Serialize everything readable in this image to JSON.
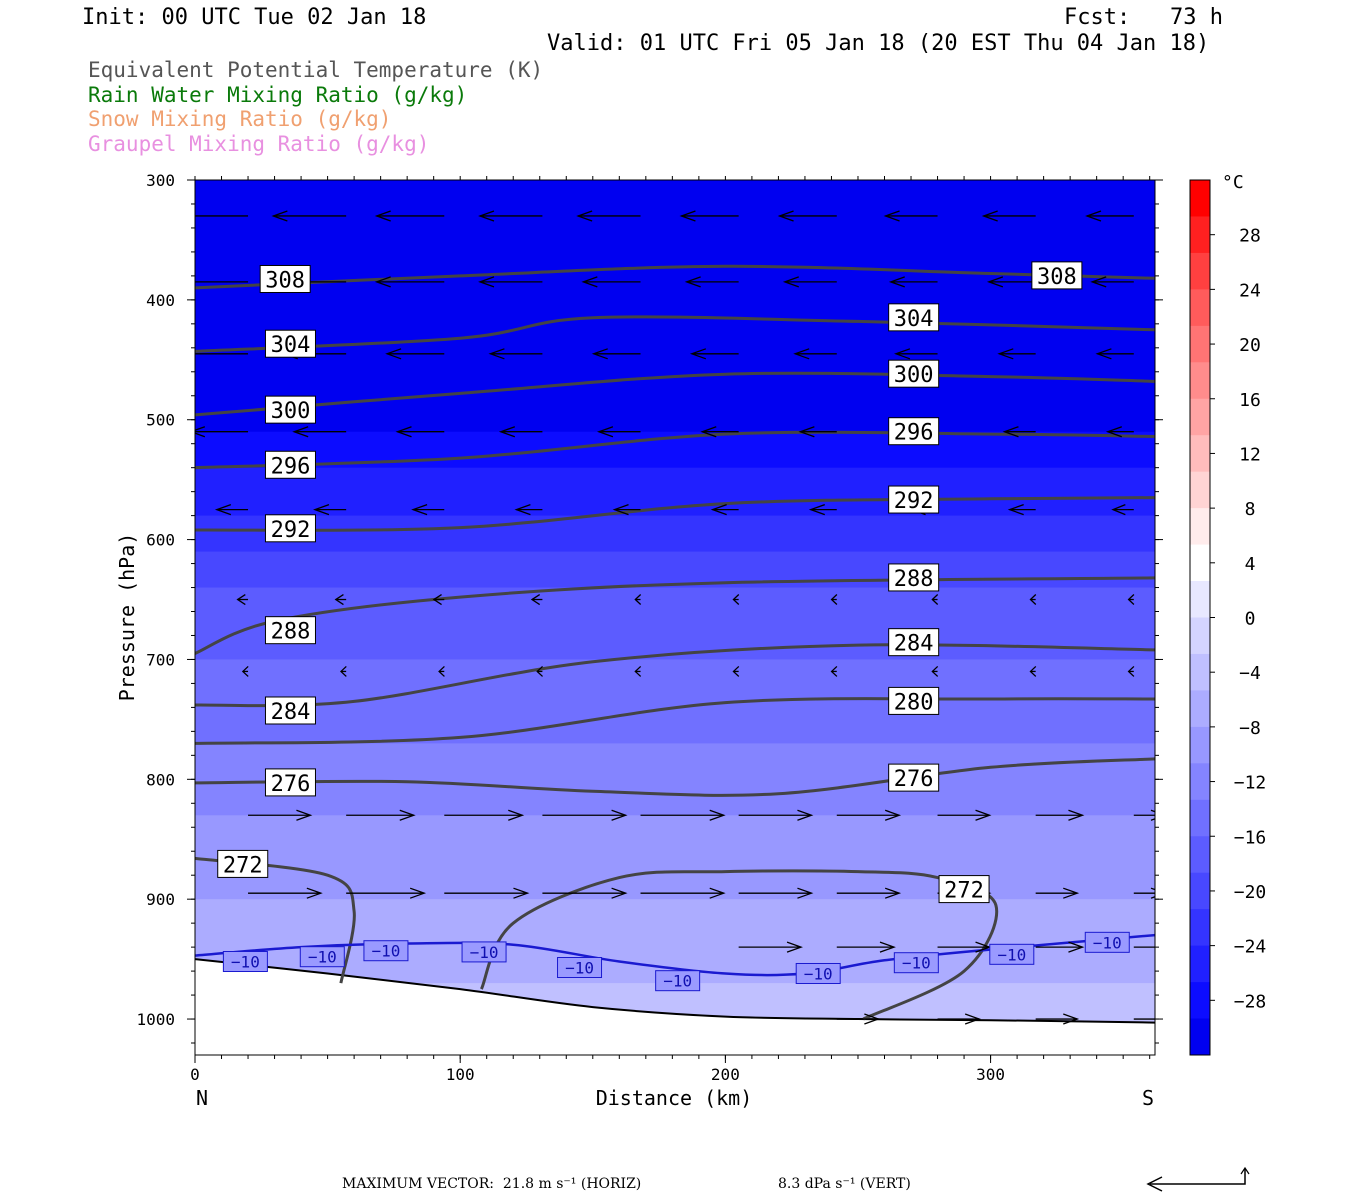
{
  "header": {
    "init": "Init: 00 UTC Tue 02 Jan 18",
    "fcst": "Fcst:   73 h",
    "valid": "Valid: 01 UTC Fri 05 Jan 18 (20 EST Thu 04 Jan 18)"
  },
  "legend": [
    {
      "label": "Equivalent Potential Temperature (K)",
      "color": "#555555"
    },
    {
      "label": "Rain Water Mixing Ratio (g/kg)",
      "color": "#0a7a0a"
    },
    {
      "label": "Snow Mixing Ratio (g/kg)",
      "color": "#f0a070"
    },
    {
      "label": "Graupel Mixing Ratio (g/kg)",
      "color": "#e890e0"
    }
  ],
  "footer": {
    "max_vector": "MAXIMUM VECTOR:  21.8 m s⁻¹ (HORIZ)",
    "vert": "8.3 dPa s⁻¹ (VERT)"
  },
  "chart_data": {
    "type": "cross-section",
    "xlabel": "Distance (km)",
    "ylabel": "Pressure (hPa)",
    "xlim": [
      0,
      362
    ],
    "ylim": [
      1030,
      300
    ],
    "x_ticks": [
      0,
      100,
      200,
      300
    ],
    "y_ticks": [
      300,
      400,
      500,
      600,
      700,
      800,
      900,
      1000
    ],
    "left_end_label": "N",
    "right_end_label": "S",
    "colorbar": {
      "unit": "°C",
      "labels": [
        "28",
        "24",
        "20",
        "16",
        "12",
        "8",
        "4",
        "0",
        "−4",
        "−8",
        "−12",
        "−16",
        "−20",
        "−24",
        "−28"
      ],
      "colors": [
        "#ff0000",
        "#ff2020",
        "#ff4040",
        "#ff5b5b",
        "#ff7474",
        "#ff8c8c",
        "#ffa4a4",
        "#ffbcbc",
        "#ffd4d4",
        "#ffecec",
        "#ffffff",
        "#e8e8ff",
        "#d4d4ff",
        "#c0c0ff",
        "#acacff",
        "#9898ff",
        "#8484ff",
        "#7070ff",
        "#5c5cff",
        "#4848ff",
        "#3434ff",
        "#2020ff",
        "#0c0cff",
        "#0000f0"
      ]
    },
    "temperature_field": {
      "levels_hPa": [
        300,
        400,
        500,
        550,
        600,
        650,
        700,
        750,
        800,
        850,
        900,
        950,
        1000
      ],
      "deg_C": [
        -50,
        -40,
        -30,
        -26,
        -22,
        -18,
        -16,
        -14,
        -12,
        -10,
        -8,
        -6,
        -4
      ]
    },
    "surface_pressure": {
      "x": [
        0,
        50,
        100,
        150,
        200,
        250,
        300,
        362
      ],
      "p": [
        950,
        962,
        975,
        990,
        998,
        1000,
        1001,
        1003
      ]
    },
    "isotherm_minus10": {
      "label": "−10",
      "x": [
        0,
        40,
        80,
        120,
        160,
        200,
        230,
        260,
        300,
        362
      ],
      "p": [
        947,
        940,
        937,
        938,
        952,
        962,
        962,
        951,
        942,
        930
      ]
    },
    "theta_e_contours": [
      {
        "label": "308",
        "x": [
          0,
          100,
          200,
          300,
          362
        ],
        "p": [
          390,
          380,
          372,
          378,
          382
        ]
      },
      {
        "label": "304",
        "x": [
          0,
          100,
          150,
          250,
          362
        ],
        "p": [
          443,
          432,
          415,
          418,
          425
        ]
      },
      {
        "label": "300",
        "x": [
          0,
          100,
          200,
          300,
          362
        ],
        "p": [
          496,
          478,
          462,
          464,
          468
        ]
      },
      {
        "label": "296",
        "x": [
          0,
          100,
          200,
          300,
          362
        ],
        "p": [
          540,
          532,
          512,
          512,
          514
        ]
      },
      {
        "label": "292",
        "x": [
          0,
          100,
          200,
          300,
          362
        ],
        "p": [
          592,
          590,
          570,
          566,
          565
        ]
      },
      {
        "label": "288",
        "x": [
          0,
          30,
          100,
          200,
          362
        ],
        "p": [
          695,
          668,
          648,
          636,
          632
        ]
      },
      {
        "label": "284",
        "x": [
          0,
          60,
          150,
          250,
          362
        ],
        "p": [
          738,
          735,
          702,
          688,
          692
        ]
      },
      {
        "label": "280",
        "x": [
          0,
          100,
          200,
          300,
          362
        ],
        "p": [
          770,
          765,
          736,
          733,
          733
        ]
      },
      {
        "label": "276",
        "x": [
          0,
          80,
          150,
          220,
          300,
          362
        ],
        "p": [
          803,
          802,
          810,
          812,
          790,
          783
        ]
      },
      {
        "label": "272",
        "x": [
          0,
          50,
          60,
          55
        ],
        "p": [
          866,
          880,
          910,
          970
        ]
      },
      {
        "label": "272",
        "x": [
          108,
          120,
          160,
          200,
          250,
          280,
          302,
          290,
          252
        ],
        "p": [
          975,
          920,
          882,
          877,
          877,
          882,
          905,
          960,
          1000
        ]
      }
    ],
    "contour_labels": [
      {
        "label": "308",
        "x": 34,
        "p": 383
      },
      {
        "label": "308",
        "x": 325,
        "p": 380
      },
      {
        "label": "304",
        "x": 36,
        "p": 437
      },
      {
        "label": "304",
        "x": 271,
        "p": 415
      },
      {
        "label": "300",
        "x": 36,
        "p": 492
      },
      {
        "label": "300",
        "x": 271,
        "p": 462
      },
      {
        "label": "296",
        "x": 36,
        "p": 538
      },
      {
        "label": "296",
        "x": 271,
        "p": 510
      },
      {
        "label": "292",
        "x": 36,
        "p": 591
      },
      {
        "label": "292",
        "x": 271,
        "p": 567
      },
      {
        "label": "288",
        "x": 36,
        "p": 676
      },
      {
        "label": "288",
        "x": 271,
        "p": 632
      },
      {
        "label": "284",
        "x": 36,
        "p": 743
      },
      {
        "label": "284",
        "x": 271,
        "p": 686
      },
      {
        "label": "280",
        "x": 271,
        "p": 735
      },
      {
        "label": "276",
        "x": 36,
        "p": 803
      },
      {
        "label": "276",
        "x": 271,
        "p": 799
      },
      {
        "label": "272",
        "x": 18,
        "p": 871
      },
      {
        "label": "272",
        "x": 290,
        "p": 892
      }
    ],
    "isotherm_labels": [
      {
        "x": 19,
        "p": 952
      },
      {
        "x": 48,
        "p": 948
      },
      {
        "x": 72,
        "p": 943
      },
      {
        "x": 109,
        "p": 944
      },
      {
        "x": 145,
        "p": 957
      },
      {
        "x": 182,
        "p": 968
      },
      {
        "x": 235,
        "p": 962
      },
      {
        "x": 272,
        "p": 953
      },
      {
        "x": 308,
        "p": 946
      },
      {
        "x": 344,
        "p": 936
      }
    ],
    "wind_vectors": {
      "x_columns": [
        20,
        57,
        94,
        131,
        168,
        205,
        242,
        280,
        317,
        354
      ],
      "rows": [
        {
          "p": 330,
          "u": [
            -14,
            -14,
            -13,
            -12,
            -12,
            -11,
            -11,
            -10,
            -10,
            -9
          ],
          "w": [
            0,
            0,
            0,
            0,
            0,
            0,
            0,
            0,
            0,
            0
          ]
        },
        {
          "p": 385,
          "u": [
            -15,
            -14,
            -13,
            -12,
            -11,
            -10,
            -10,
            -9,
            -9,
            -8
          ],
          "w": [
            0,
            0,
            0,
            0,
            0,
            0,
            0,
            0,
            0,
            0
          ]
        },
        {
          "p": 445,
          "u": [
            -13,
            -12,
            -11,
            -10,
            -9,
            -9,
            -8,
            -8,
            -7,
            -7
          ],
          "w": [
            0,
            0,
            0,
            0,
            0,
            0,
            0,
            0,
            0,
            0
          ]
        },
        {
          "p": 510,
          "u": [
            -11,
            -10,
            -9,
            -8,
            -8,
            -7,
            -7,
            -6,
            -6,
            -5
          ],
          "w": [
            0,
            0,
            0,
            0,
            0,
            0,
            0,
            0,
            0,
            0
          ]
        },
        {
          "p": 575,
          "u": [
            -6,
            -6,
            -6,
            -5,
            -5,
            -5,
            -5,
            -5,
            -5,
            -4
          ],
          "w": [
            0,
            0,
            0,
            0,
            0,
            0,
            0,
            0,
            0,
            0
          ]
        },
        {
          "p": 650,
          "u": [
            -2,
            -2,
            -2,
            -2,
            -1,
            -1,
            -1,
            -1,
            -1,
            -1
          ],
          "w": [
            0,
            0,
            0,
            0,
            0,
            0,
            0,
            0,
            0,
            0
          ]
        },
        {
          "p": 710,
          "u": [
            -1,
            -1,
            -1,
            -1,
            -1,
            -1,
            -1,
            -1,
            -1,
            -1
          ],
          "w": [
            0,
            0,
            0,
            0,
            0,
            0,
            0,
            0,
            0,
            0
          ]
        },
        {
          "p": 830,
          "u": [
            12,
            13,
            15,
            16,
            16,
            14,
            12,
            10,
            9,
            6
          ],
          "w": [
            0,
            0,
            0,
            0,
            0,
            0,
            0,
            0,
            0,
            0
          ]
        },
        {
          "p": 895,
          "u": [
            14,
            15,
            16,
            16,
            16,
            14,
            12,
            10,
            8,
            6
          ],
          "w": [
            0,
            0,
            0,
            0,
            0,
            0,
            0,
            0,
            0,
            0
          ]
        },
        {
          "p": 940,
          "u": [
            0,
            0,
            0,
            0,
            0,
            12,
            11,
            10,
            9,
            8
          ],
          "w": [
            0,
            0,
            0,
            0,
            0,
            0,
            0,
            0,
            0,
            0
          ]
        },
        {
          "p": 1000,
          "u": [
            0,
            0,
            0,
            0,
            0,
            0,
            8,
            8,
            8,
            7
          ],
          "w": [
            0,
            0,
            0,
            0,
            0,
            0,
            0,
            0,
            0,
            0
          ]
        }
      ]
    }
  }
}
